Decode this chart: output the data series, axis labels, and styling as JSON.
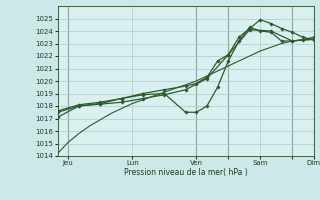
{
  "background_color": "#cce8e8",
  "plot_bg_color": "#daf0f0",
  "grid_color": "#aacccc",
  "line_color": "#2d5a2d",
  "xlabel": "Pression niveau de la mer( hPa )",
  "ylim": [
    1014,
    1026
  ],
  "xlim": [
    0,
    96
  ],
  "yticks": [
    1014,
    1015,
    1016,
    1017,
    1018,
    1019,
    1020,
    1021,
    1022,
    1023,
    1024,
    1025
  ],
  "xtick_positions": [
    4,
    28,
    52,
    64,
    76,
    88,
    96
  ],
  "xtick_labels": [
    "Jeu",
    "Lun",
    "Ven",
    "",
    "Sam",
    "",
    "Dim"
  ],
  "vline_positions": [
    4,
    52,
    64,
    88,
    96
  ],
  "series1_x": [
    0,
    4,
    8,
    12,
    16,
    20,
    24,
    28,
    32,
    36,
    40,
    44,
    48,
    52,
    56,
    60,
    64,
    68,
    72,
    76,
    80,
    84,
    88,
    92,
    96
  ],
  "series1_y": [
    1014.2,
    1015.1,
    1015.8,
    1016.4,
    1016.9,
    1017.4,
    1017.8,
    1018.2,
    1018.5,
    1018.8,
    1019.1,
    1019.4,
    1019.7,
    1020.0,
    1020.4,
    1020.8,
    1021.2,
    1021.6,
    1022.0,
    1022.4,
    1022.7,
    1023.0,
    1023.2,
    1023.3,
    1023.3
  ],
  "series2_x": [
    0,
    8,
    16,
    24,
    32,
    40,
    48,
    56,
    64,
    72,
    80,
    88,
    96
  ],
  "series2_y": [
    1017.1,
    1018.0,
    1018.15,
    1018.3,
    1018.6,
    1018.9,
    1019.3,
    1020.2,
    1022.1,
    1024.1,
    1024.0,
    1023.2,
    1023.35
  ],
  "series3_x": [
    0,
    8,
    16,
    24,
    32,
    40,
    48,
    52,
    56,
    60,
    64,
    68,
    72,
    76,
    80,
    84,
    88,
    92,
    96
  ],
  "series3_y": [
    1017.6,
    1018.1,
    1018.3,
    1018.6,
    1019.0,
    1019.3,
    1019.6,
    1019.8,
    1020.3,
    1021.6,
    1022.1,
    1023.5,
    1024.2,
    1024.9,
    1024.6,
    1024.2,
    1023.9,
    1023.5,
    1023.3
  ],
  "series4_x": [
    0,
    8,
    16,
    24,
    32,
    40,
    48,
    52,
    56,
    60,
    64,
    68,
    72,
    76,
    80,
    84,
    88,
    92,
    96
  ],
  "series4_y": [
    1017.5,
    1018.0,
    1018.2,
    1018.6,
    1018.9,
    1019.0,
    1017.5,
    1017.5,
    1018.0,
    1019.5,
    1021.6,
    1023.2,
    1024.3,
    1024.0,
    1023.9,
    1023.2,
    1023.2,
    1023.3,
    1023.5
  ]
}
